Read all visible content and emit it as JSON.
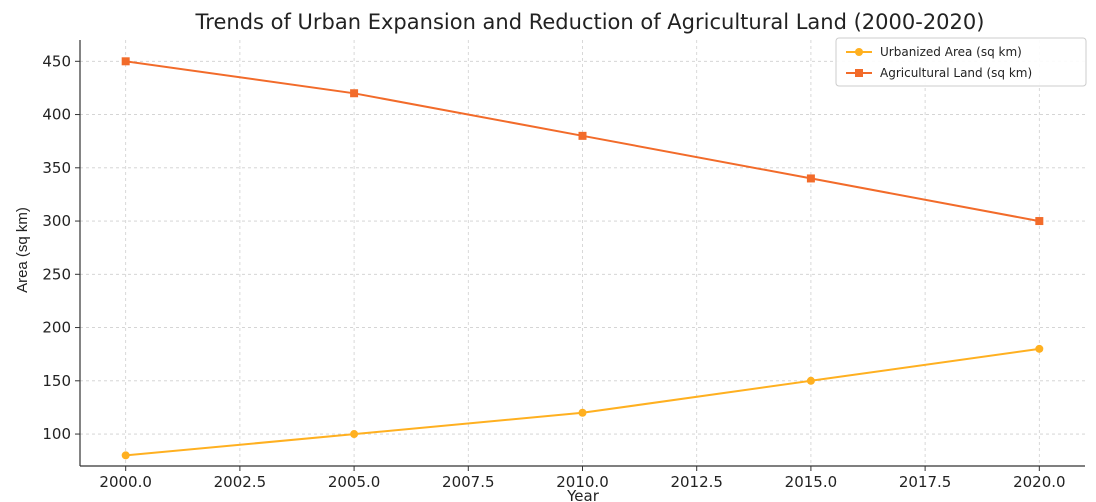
{
  "chart_data": {
    "type": "line",
    "title": "Trends of Urban Expansion and Reduction of Agricultural Land (2000-2020)",
    "xlabel": "Year",
    "ylabel": "Area (sq km)",
    "x": [
      2000,
      2005,
      2010,
      2015,
      2020
    ],
    "xlim": [
      1999.0,
      2021.0
    ],
    "ylim": [
      70,
      470
    ],
    "xticks": [
      "2000.0",
      "2002.5",
      "2005.0",
      "2007.5",
      "2010.0",
      "2012.5",
      "2015.0",
      "2017.5",
      "2020.0"
    ],
    "yticks": [
      "100",
      "150",
      "200",
      "250",
      "300",
      "350",
      "400",
      "450"
    ],
    "grid": true,
    "legend_position": "top-right",
    "series": [
      {
        "name": "Urbanized Area (sq km)",
        "values": [
          80,
          100,
          120,
          150,
          180
        ],
        "color": "#FFB020",
        "marker": "circle"
      },
      {
        "name": "Agricultural Land (sq km)",
        "values": [
          450,
          420,
          380,
          340,
          300
        ],
        "color": "#F26B2A",
        "marker": "square"
      }
    ]
  }
}
